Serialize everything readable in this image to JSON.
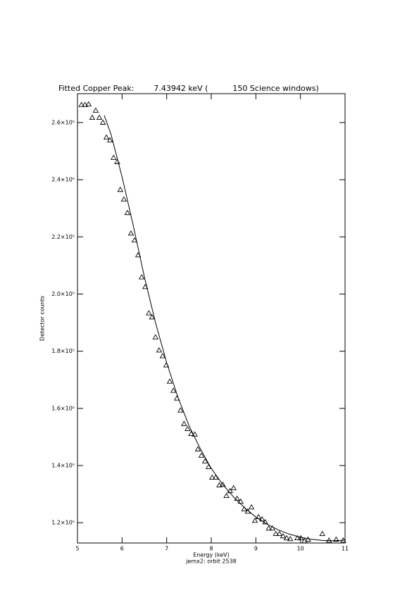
{
  "chart_data": {
    "type": "scatter",
    "title": "Fitted Copper Peak:        7.43942 keV (          150 Science windows)",
    "x_label": "Energy (keV)",
    "subtitle": "jemx2: orbit 2538",
    "y_label": "Detector counts",
    "xlim": [
      5,
      11
    ],
    "xticks": [
      5,
      6,
      7,
      8,
      9,
      10,
      11
    ],
    "ylim": [
      112900,
      270100
    ],
    "yticks": [
      {
        "value": 120000,
        "label": "1.2×10⁵"
      },
      {
        "value": 140000,
        "label": "1.4×10⁵"
      },
      {
        "value": 160000,
        "label": "1.6×10⁵"
      },
      {
        "value": 180000,
        "label": "1.8×10⁵"
      },
      {
        "value": 200000,
        "label": "2.0×10⁵"
      },
      {
        "value": 220000,
        "label": "2.2×10⁵"
      },
      {
        "value": 240000,
        "label": "2.4×10⁵"
      },
      {
        "value": 260000,
        "label": "2.6×10⁵"
      }
    ],
    "series": [
      {
        "color": "#000000",
        "style": "markers",
        "x": [
          5.09,
          5.17,
          5.25,
          5.33,
          5.41,
          5.49,
          5.57,
          5.65,
          5.73,
          5.81,
          5.89,
          5.96,
          6.04,
          6.12,
          6.2,
          6.28,
          6.36,
          6.44,
          6.52,
          6.6,
          6.67,
          6.75,
          6.83,
          6.91,
          6.99,
          7.07,
          7.15,
          7.23,
          7.31,
          7.39,
          7.47,
          7.55,
          7.63,
          7.7,
          7.78,
          7.86,
          7.94,
          8.02,
          8.1,
          8.18,
          8.26,
          8.34,
          8.42,
          8.5,
          8.58,
          8.66,
          8.74,
          8.82,
          8.9,
          8.98,
          9.06,
          9.14,
          9.21,
          9.29,
          9.37,
          9.45,
          9.53,
          9.61,
          9.69,
          9.77,
          9.93,
          10.01,
          10.09,
          10.17,
          10.49,
          10.64,
          10.8,
          10.96
        ],
        "values": [
          266200,
          266200,
          266400,
          261700,
          264200,
          261700,
          260000,
          254800,
          253800,
          247700,
          246200,
          236500,
          233100,
          228400,
          221200,
          218800,
          213600,
          205900,
          202500,
          193300,
          191900,
          184900,
          180300,
          178300,
          175100,
          169400,
          166200,
          163500,
          159300,
          154600,
          152800,
          151100,
          150900,
          145700,
          143500,
          141500,
          139500,
          135800,
          135800,
          133100,
          133300,
          129400,
          131100,
          132100,
          128400,
          127400,
          124700,
          123900,
          125400,
          120700,
          122000,
          121200,
          120200,
          118000,
          118000,
          116100,
          116100,
          115300,
          114600,
          114300,
          114600,
          114600,
          113600,
          114100,
          116100,
          113800,
          114100,
          113800
        ]
      },
      {
        "color": "#000000",
        "style": "line",
        "x": [
          5.6,
          5.75,
          6.0,
          6.25,
          6.5,
          6.75,
          7.0,
          7.25,
          7.5,
          7.75,
          8.0,
          8.25,
          8.5,
          8.75,
          9.0,
          9.25,
          9.5,
          9.75,
          10.0,
          10.25,
          10.5,
          10.75,
          11.0
        ],
        "values": [
          262500,
          256000,
          241000,
          224000,
          206000,
          190000,
          176000,
          164000,
          154000,
          146000,
          139000,
          133500,
          129000,
          125200,
          122000,
          119500,
          117500,
          116000,
          114900,
          114200,
          113800,
          113700,
          113900
        ]
      }
    ]
  }
}
